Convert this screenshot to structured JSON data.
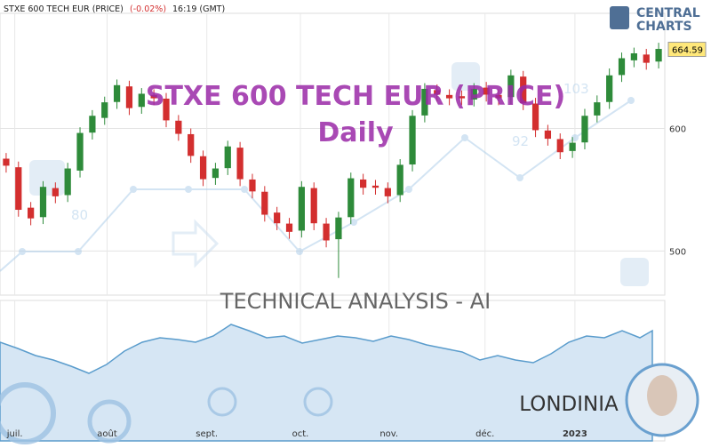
{
  "chart_data": {
    "type": "candlestick",
    "header": {
      "name": "STXE 600 TECH EUR (PRICE)",
      "change": "(-0.02%)",
      "time": "16:19 (GMT)"
    },
    "title": "STXE 600 TECH EUR (PRICE)",
    "subtitle": "Daily",
    "banner": "TECHNICAL  ANALYSIS - AI",
    "brand": "LONDINIA",
    "logo": [
      "CENTRAL",
      "CHARTS"
    ],
    "watermark_numbers": [
      "80",
      "92",
      "103"
    ],
    "up_color": "#2e8b3a",
    "down_color": "#d32f2f",
    "open": [
      575,
      568,
      535,
      528,
      551,
      546,
      566,
      597,
      609,
      622,
      634,
      618,
      627,
      624,
      606,
      595,
      577,
      560,
      568,
      584,
      558,
      548,
      531,
      522,
      517,
      551,
      522,
      510,
      528,
      558,
      553,
      551,
      546,
      571,
      611,
      631,
      627,
      626,
      624,
      633,
      627,
      626,
      642,
      620,
      598,
      591,
      582,
      589,
      611,
      622,
      644,
      656,
      660,
      655
    ],
    "high": [
      580,
      573,
      540,
      557,
      556,
      572,
      601,
      615,
      626,
      640,
      639,
      633,
      632,
      629,
      611,
      600,
      582,
      572,
      590,
      589,
      563,
      553,
      536,
      527,
      557,
      556,
      527,
      532,
      564,
      563,
      558,
      556,
      575,
      615,
      637,
      636,
      632,
      631,
      637,
      638,
      632,
      648,
      647,
      625,
      603,
      596,
      593,
      616,
      627,
      649,
      662,
      666,
      665,
      670
    ],
    "low": [
      564,
      528,
      521,
      522,
      539,
      540,
      560,
      591,
      603,
      616,
      611,
      612,
      619,
      601,
      590,
      572,
      553,
      554,
      562,
      553,
      543,
      524,
      517,
      510,
      511,
      517,
      503,
      478,
      522,
      546,
      546,
      539,
      540,
      565,
      605,
      622,
      619,
      619,
      618,
      622,
      619,
      620,
      615,
      593,
      586,
      575,
      576,
      583,
      605,
      616,
      638,
      650,
      648,
      649
    ],
    "close": [
      570,
      534,
      527,
      552,
      545,
      567,
      596,
      610,
      621,
      635,
      617,
      628,
      625,
      607,
      596,
      578,
      559,
      567,
      585,
      559,
      549,
      530,
      523,
      516,
      552,
      523,
      509,
      527,
      559,
      552,
      552,
      545,
      570,
      610,
      632,
      628,
      625,
      625,
      632,
      628,
      625,
      643,
      621,
      599,
      592,
      581,
      588,
      610,
      621,
      643,
      657,
      661,
      654,
      664.59
    ],
    "last_price": 664.59,
    "xlim": [
      -0.5,
      53.5
    ],
    "xticks": [
      {
        "value": 0.7,
        "label": "juil."
      },
      {
        "value": 8.2,
        "label": "août"
      },
      {
        "value": 16.3,
        "label": "sept."
      },
      {
        "value": 23.9,
        "label": "oct."
      },
      {
        "value": 31.1,
        "label": "nov."
      },
      {
        "value": 38.9,
        "label": "déc."
      },
      {
        "value": 46.2,
        "label": "2023"
      }
    ],
    "ylim": [
      464,
      694
    ],
    "yticks": [
      500,
      600
    ],
    "grid": true
  }
}
